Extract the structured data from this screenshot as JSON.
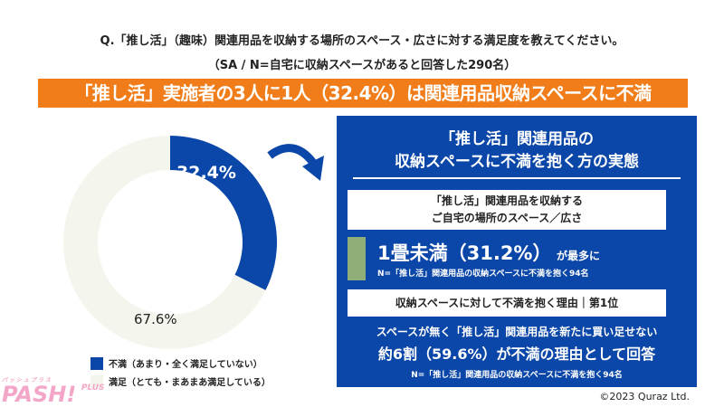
{
  "question": "Q.「推し活」（趣味）関連用品を収納する場所のスペース・広さに対する満足度を教えてください。",
  "sample": "（SA / N=自宅に収納スペースがあると回答した290名）",
  "banner": "「推し活」実施者の3人に1人（32.4%）は関連用品収納スペースに不満",
  "chart_data": {
    "type": "pie",
    "donut": true,
    "categories": [
      "不満（あまり・全く満足していない）",
      "満足（とても・まあまあ満足している）"
    ],
    "values": [
      32.4,
      67.6
    ],
    "labels": [
      "32.4%",
      "67.6%"
    ],
    "colors": [
      "#0b47a8",
      "#f4f5ec"
    ],
    "legend": "bottom"
  },
  "panel": {
    "title1": "「推し活」関連用品の",
    "title2": "収納スペースに不満を抱く方の実態",
    "box1_line1": "「推し活」関連用品を収納する",
    "box1_line2": "ご自宅の場所のスペース／広さ",
    "result1_main": "1畳未満（31.2%）",
    "result1_suffix": "が最多に",
    "note1": "N=「推し活」関連用品の収納スペースに不満を抱く94名",
    "box2": "収納スペースに対して不満を抱く理由｜第1位",
    "result2_line1": "スペースが無く「推し活」関連用品を新たに買い足せない",
    "result2_line2": "約6割（59.6%）が不満の理由として回答",
    "note2": "N=「推し活」関連用品の収納スペースに不満を抱く94名"
  },
  "logo": {
    "text": "PASH!",
    "sub": "PLUS",
    "kana": "パッシュプラス"
  },
  "copyright": "©2023 Quraz Ltd."
}
